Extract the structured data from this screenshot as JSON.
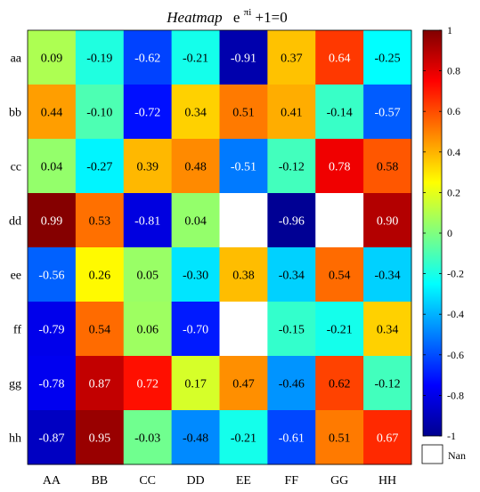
{
  "chart_data": {
    "type": "heatmap",
    "title": "Heatmap",
    "title_formula_base": "e",
    "title_formula_exponent": "πi",
    "title_formula_rest": "+1=0",
    "x_categories": [
      "AA",
      "BB",
      "CC",
      "DD",
      "EE",
      "FF",
      "GG",
      "HH"
    ],
    "y_categories": [
      "aa",
      "bb",
      "cc",
      "dd",
      "ee",
      "ff",
      "gg",
      "hh"
    ],
    "values": [
      [
        0.09,
        -0.19,
        -0.62,
        -0.21,
        -0.91,
        0.37,
        0.64,
        -0.25
      ],
      [
        0.44,
        -0.1,
        -0.72,
        0.34,
        0.51,
        0.41,
        -0.14,
        -0.57
      ],
      [
        0.04,
        -0.27,
        0.39,
        0.48,
        -0.51,
        -0.12,
        0.78,
        0.58
      ],
      [
        0.99,
        0.53,
        -0.81,
        0.04,
        null,
        -0.96,
        null,
        0.9
      ],
      [
        -0.56,
        0.26,
        0.05,
        -0.3,
        0.38,
        -0.34,
        0.54,
        -0.34
      ],
      [
        -0.79,
        0.54,
        0.06,
        -0.7,
        null,
        -0.15,
        -0.21,
        0.34
      ],
      [
        -0.78,
        0.87,
        0.72,
        0.17,
        0.47,
        -0.46,
        0.62,
        -0.12
      ],
      [
        -0.87,
        0.95,
        -0.03,
        -0.48,
        -0.21,
        -0.61,
        0.51,
        0.67
      ]
    ],
    "colormap": "jet",
    "clim": [
      -1,
      1
    ],
    "colorbar_ticks": [
      "1",
      "0.8",
      "0.6",
      "0.4",
      "0.2",
      "0",
      "-0.2",
      "-0.4",
      "-0.6",
      "-0.8",
      "-1"
    ],
    "nan_label": "Nan",
    "nan_color": "#ffffff",
    "grid": false
  }
}
